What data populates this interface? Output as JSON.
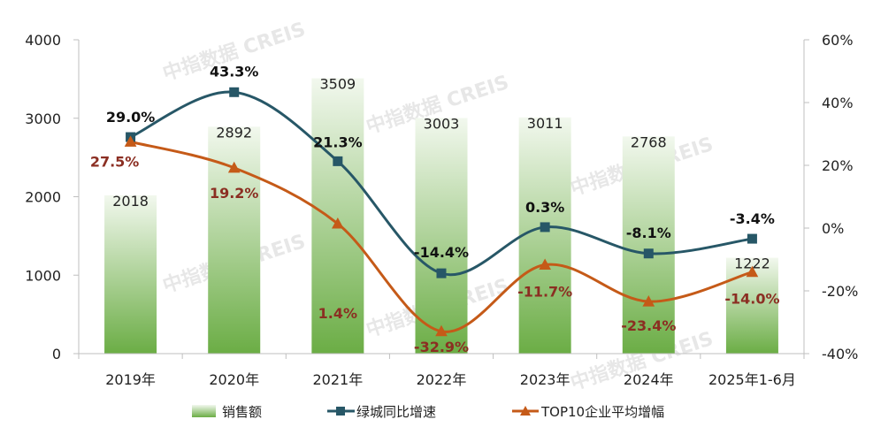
{
  "chart_data": {
    "type": "bar",
    "categories": [
      "2019年",
      "2020年",
      "2021年",
      "2022年",
      "2023年",
      "2024年",
      "2025年1-6月"
    ],
    "series": [
      {
        "name": "销售额",
        "type": "bar",
        "axis": "left",
        "values": [
          2018,
          2892,
          3509,
          3003,
          3011,
          2768,
          1222
        ],
        "labels": [
          "2018",
          "2892",
          "3509",
          "3003",
          "3011",
          "2768",
          "1222"
        ]
      },
      {
        "name": "绿城同比增速",
        "type": "line",
        "axis": "right",
        "marker": "square",
        "values": [
          29.0,
          43.3,
          21.3,
          -14.4,
          0.3,
          -8.1,
          -3.4
        ],
        "labels": [
          "29.0%",
          "43.3%",
          "21.3%",
          "-14.4%",
          "0.3%",
          "-8.1%",
          "-3.4%"
        ]
      },
      {
        "name": "TOP10企业平均增幅",
        "type": "line",
        "axis": "right",
        "marker": "triangle",
        "values": [
          27.5,
          19.2,
          1.4,
          -32.9,
          -11.7,
          -23.4,
          -14.0
        ],
        "labels": [
          "27.5%",
          "19.2%",
          "1.4%",
          "-32.9%",
          "-11.7%",
          "-23.4%",
          "-14.0%"
        ]
      }
    ],
    "y_left": {
      "range": [
        0,
        4000
      ],
      "ticks": [
        0,
        1000,
        2000,
        3000,
        4000
      ],
      "tick_labels": [
        "0",
        "1000",
        "2000",
        "3000",
        "4000"
      ]
    },
    "y_right": {
      "range": [
        -40,
        60
      ],
      "ticks": [
        -40,
        -20,
        0,
        20,
        40,
        60
      ],
      "tick_labels": [
        "-40%",
        "-20%",
        "0%",
        "20%",
        "40%",
        "60%"
      ]
    },
    "grid": false,
    "legend_position": "bottom",
    "colors": {
      "bar_top": "#f2f8ee",
      "bar_bottom": "#6bad45",
      "green_line": "#275767",
      "orange_line": "#c55a18",
      "orange_label": "#8b2e22"
    },
    "watermark": "中指数据 CREIS"
  }
}
